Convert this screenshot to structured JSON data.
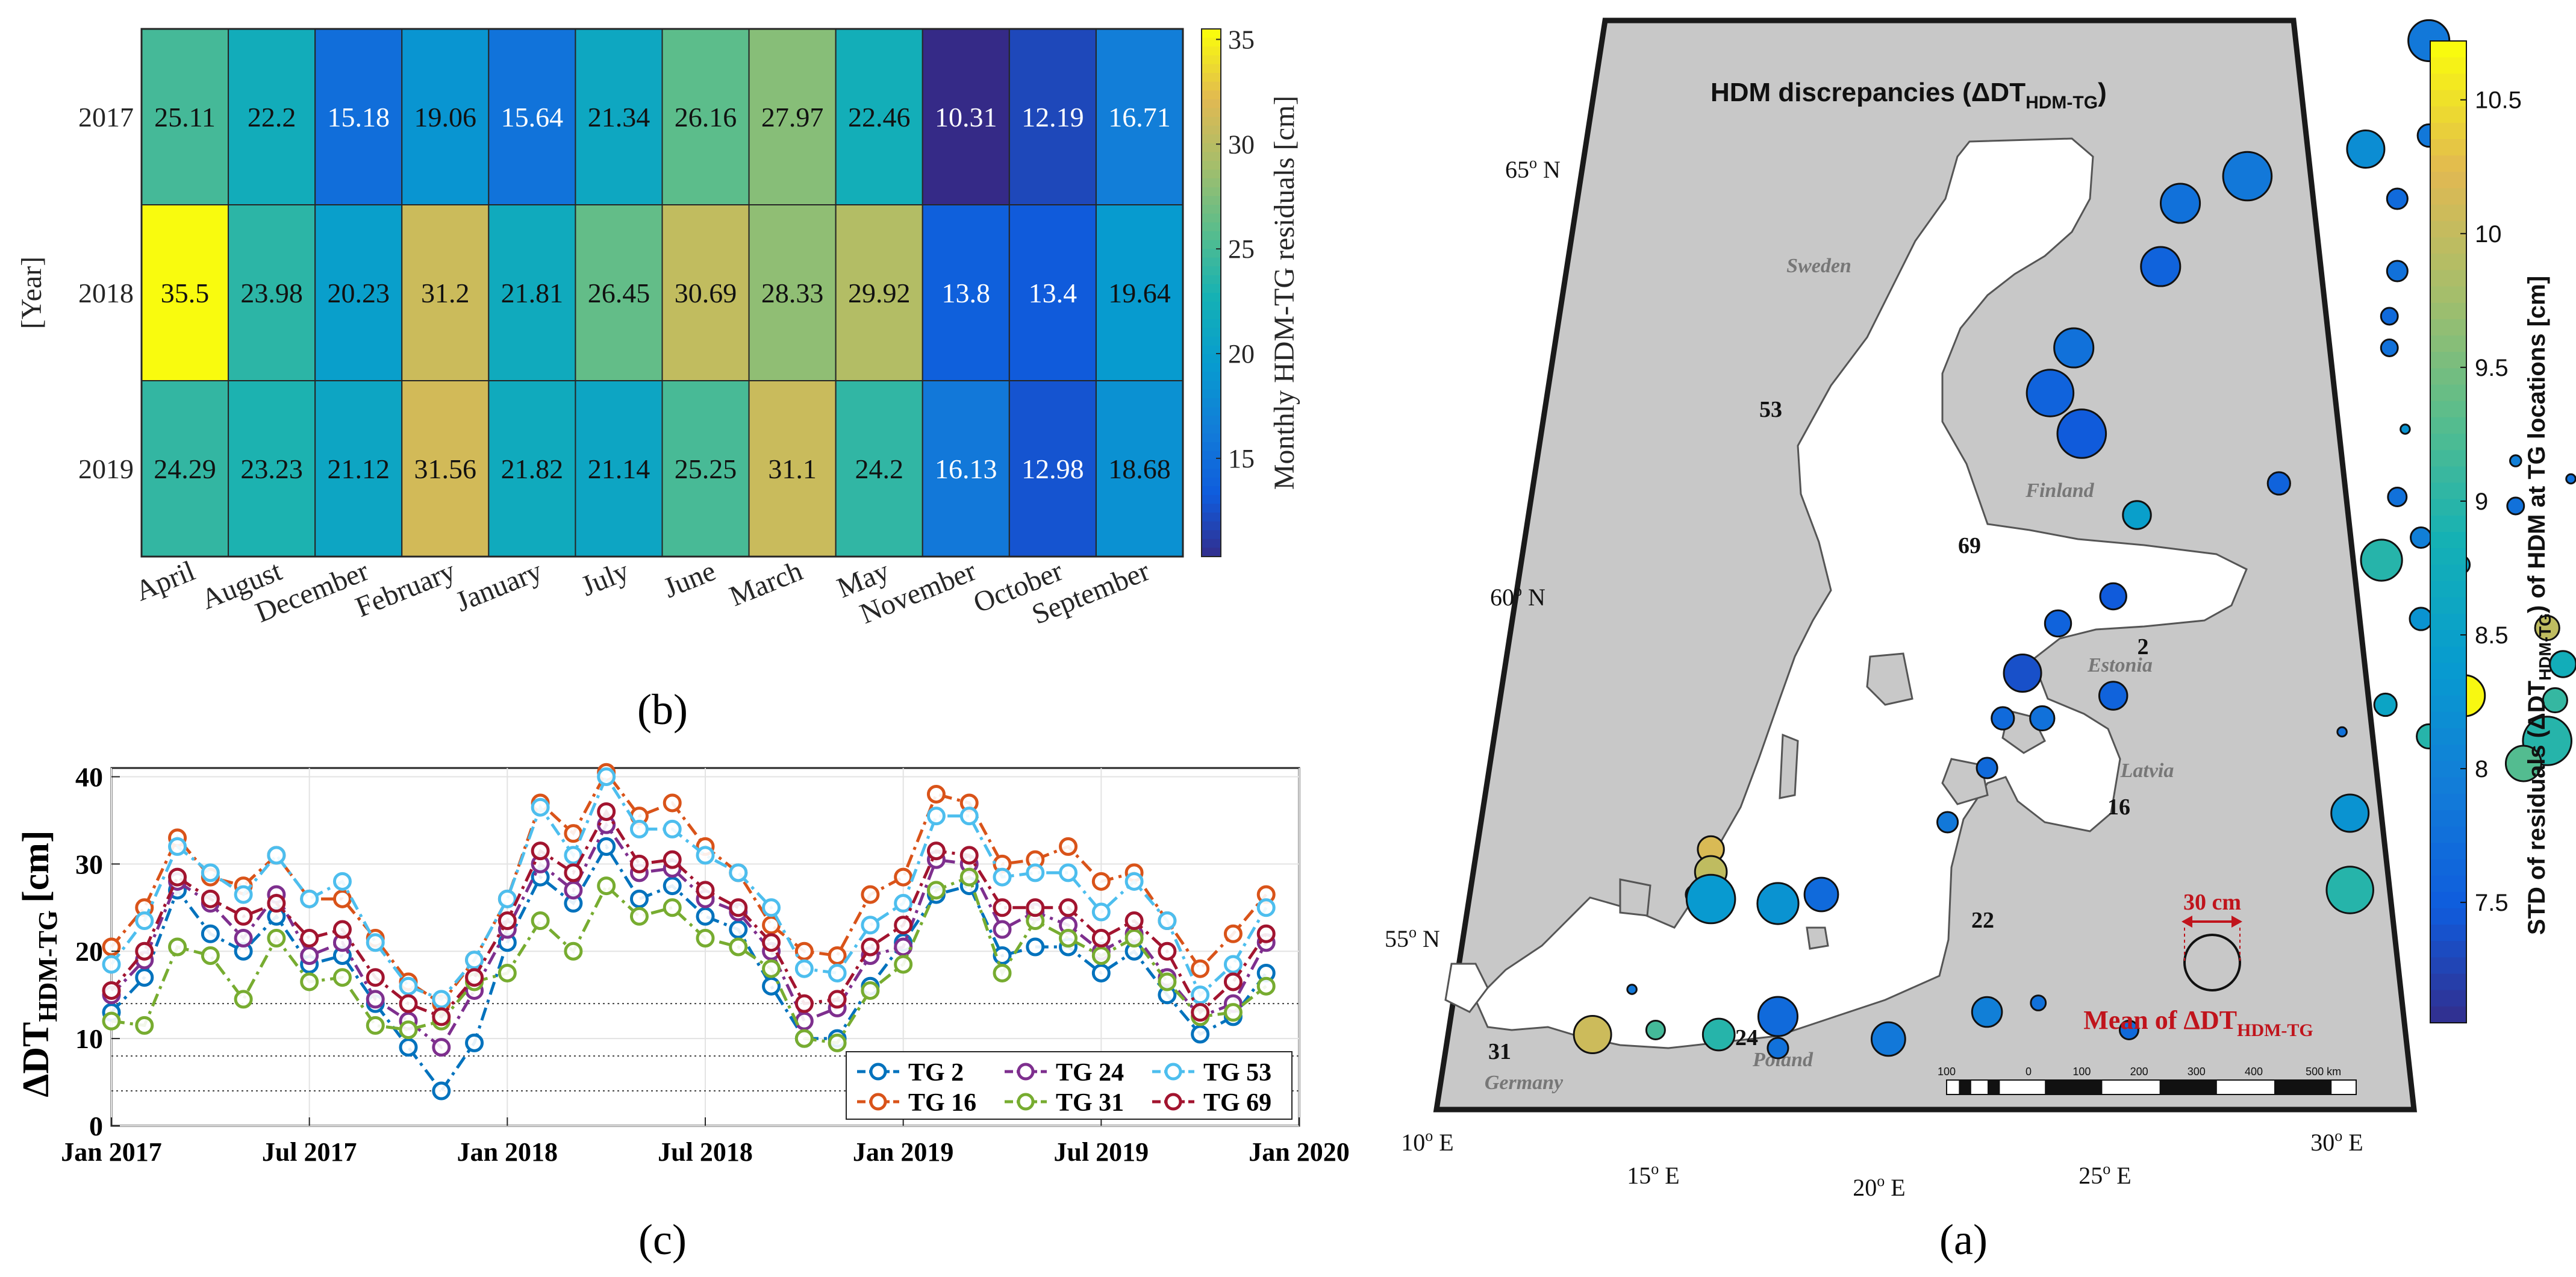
{
  "chart_data": [
    {
      "panel_label": "(b)",
      "type": "heatmap",
      "y_axis_label": "[Year]",
      "rows": [
        "2017",
        "2018",
        "2019"
      ],
      "columns": [
        "April",
        "August",
        "December",
        "February",
        "January",
        "July",
        "June",
        "March",
        "May",
        "November",
        "October",
        "September"
      ],
      "values": [
        [
          "25.11",
          "22.2",
          "15.18",
          "19.06",
          "15.64",
          "21.34",
          "26.16",
          "27.97",
          "22.46",
          "10.31",
          "12.19",
          "16.71"
        ],
        [
          "35.5",
          "23.98",
          "20.23",
          "31.2",
          "21.81",
          "26.45",
          "30.69",
          "28.33",
          "29.92",
          "13.8",
          "13.4",
          "19.64"
        ],
        [
          "24.29",
          "23.23",
          "21.12",
          "31.56",
          "21.82",
          "21.14",
          "25.25",
          "31.1",
          "24.2",
          "16.13",
          "12.98",
          "18.68"
        ]
      ],
      "colorbar": {
        "label": "Monthly HDM-TG residuals [cm]",
        "range": [
          10.31,
          35.5
        ],
        "ticks": [
          "15",
          "20",
          "25",
          "30",
          "35"
        ],
        "colormap": "parula"
      }
    },
    {
      "panel_label": "(c)",
      "type": "line",
      "ylabel_main": "ΔDT",
      "ylabel_sub": "HDM-TG",
      "ylabel_unit": "[cm]",
      "x_ticks": [
        "Jan 2017",
        "Jul 2017",
        "Jan 2018",
        "Jul 2018",
        "Jan 2019",
        "Jul 2019",
        "Jan 2020"
      ],
      "x_range_months": [
        0,
        36
      ],
      "y_range": [
        0,
        41
      ],
      "y_ticks": [
        "0",
        "10",
        "20",
        "30",
        "40"
      ],
      "reference_lines": [
        14,
        8,
        4
      ],
      "legend_position": "bottom-right",
      "x_months": [
        0,
        1,
        2,
        3,
        4,
        5,
        6,
        7,
        8,
        9,
        10,
        11,
        12,
        13,
        14,
        15,
        16,
        17,
        18,
        19,
        20,
        21,
        22,
        23,
        24,
        25,
        26,
        27,
        28,
        29,
        30,
        31,
        32,
        33,
        34,
        35
      ],
      "series": [
        {
          "name": "TG 2",
          "color": "#0072BD",
          "values": [
            13,
            17,
            27,
            22,
            20,
            24,
            18.5,
            19.5,
            14,
            9,
            4,
            9.5,
            21,
            28.5,
            25.5,
            32,
            26,
            27.5,
            24,
            22.5,
            16,
            10,
            10,
            16,
            21,
            26.5,
            27.5,
            19.5,
            20.5,
            20.5,
            17.5,
            20,
            15,
            10.5,
            12.5,
            17.5
          ]
        },
        {
          "name": "TG 16",
          "color": "#D95319",
          "values": [
            20.5,
            25,
            33,
            28.5,
            27.5,
            31,
            26,
            26,
            21.5,
            16.5,
            14,
            19,
            26,
            37,
            33.5,
            40.5,
            35.5,
            37,
            32,
            29,
            23,
            20,
            19.5,
            26.5,
            28.5,
            38,
            37,
            30,
            30.5,
            32,
            28,
            29,
            23.5,
            18,
            22,
            26.5
          ]
        },
        {
          "name": "TG 24",
          "color": "#7E2F8E",
          "values": [
            15,
            19,
            28,
            25.5,
            21.5,
            26.5,
            19.5,
            21,
            14.5,
            12,
            9,
            15.5,
            22.5,
            30,
            27,
            34.5,
            29,
            29.5,
            26,
            24.5,
            20,
            12,
            13.5,
            19.5,
            20.5,
            30.5,
            30,
            22.5,
            24.5,
            23,
            20,
            22,
            17,
            12.5,
            14,
            21
          ]
        },
        {
          "name": "TG 31",
          "color": "#77AC30",
          "values": [
            12,
            11.5,
            20.5,
            19.5,
            14.5,
            21.5,
            16.5,
            17,
            11.5,
            11,
            12,
            16.5,
            17.5,
            23.5,
            20,
            27.5,
            24,
            25,
            21.5,
            20.5,
            18,
            10,
            9.5,
            15.5,
            18.5,
            27,
            28.5,
            17.5,
            23.5,
            21.5,
            19.5,
            21.5,
            16.5,
            12.5,
            13,
            16
          ]
        },
        {
          "name": "TG 53",
          "color": "#4DBEEE",
          "values": [
            18.5,
            23.5,
            32,
            29,
            26.5,
            31,
            26,
            28,
            21,
            16,
            14.5,
            19,
            26,
            36.5,
            31,
            40,
            34,
            34,
            31,
            29,
            25,
            18,
            17.5,
            23,
            25.5,
            35.5,
            35.5,
            28.5,
            29,
            29,
            24.5,
            28,
            23.5,
            15,
            18.5,
            25
          ]
        },
        {
          "name": "TG 69",
          "color": "#A2142F",
          "values": [
            15.5,
            20,
            28.5,
            26,
            24,
            25.5,
            21.5,
            22.5,
            17,
            14,
            12.5,
            17,
            23.5,
            31.5,
            29,
            36,
            30,
            30.5,
            27,
            25,
            21,
            14,
            14.5,
            20.5,
            23,
            31.5,
            31,
            25,
            25,
            25,
            21.5,
            23.5,
            20,
            13,
            16.5,
            22
          ]
        }
      ]
    },
    {
      "panel_label": "(a)",
      "type": "scatter",
      "map_title_main": "HDM discrepancies (ΔDT",
      "map_title_sub": "HDM-TG",
      "map_title_close": ")",
      "lon_ticks": [
        "10",
        "15",
        "20",
        "25",
        "30"
      ],
      "lon_suffix": "E",
      "lat_ticks": [
        "55",
        "60",
        "65"
      ],
      "lat_suffix": "N",
      "place_labels": [
        "Sweden",
        "Finland",
        "Estonia",
        "Latvia",
        "Poland",
        "Germany"
      ],
      "station_labels": [
        "53",
        "69",
        "2",
        "16",
        "22",
        "24",
        "31"
      ],
      "colorbar": {
        "label_main": "STD of residuals (ΔDT",
        "label_sub": "HDM-TG",
        "label_rest": ") of HDM at TG locations [cm]",
        "range": [
          7.05,
          10.72
        ],
        "ticks": [
          "7.5",
          "8",
          "8.5",
          "9",
          "9.5",
          "10",
          "10.5"
        ],
        "colormap": "parula"
      },
      "size_legend": {
        "value_label": "30 cm",
        "caption_main": "Mean of ΔDT",
        "caption_sub": "HDM-TG"
      },
      "scale_bar": {
        "ticks": [
          "100",
          "0",
          "100",
          "200",
          "300",
          "400",
          "500 km"
        ]
      },
      "points": [
        {
          "lon": 23.0,
          "lat": 65.7,
          "std": 8.8,
          "mean": 18
        },
        {
          "lon": 23.5,
          "lat": 65.75,
          "std": 8.7,
          "mean": 16
        },
        {
          "lon": 24.4,
          "lat": 65.75,
          "std": 8.5,
          "mean": 18
        },
        {
          "lon": 24.6,
          "lat": 65.1,
          "std": 8.4,
          "mean": 16
        },
        {
          "lon": 24.1,
          "lat": 64.8,
          "std": 8.3,
          "mean": 15
        },
        {
          "lon": 22.0,
          "lat": 64.95,
          "std": 7.9,
          "mean": 22
        },
        {
          "lon": 22.0,
          "lat": 63.9,
          "std": 7.9,
          "mean": 12
        },
        {
          "lon": 21.2,
          "lat": 63.75,
          "std": 8.2,
          "mean": 20
        },
        {
          "lon": 19.7,
          "lat": 63.45,
          "std": 7.9,
          "mean": 26
        },
        {
          "lon": 18.85,
          "lat": 63.15,
          "std": 7.8,
          "mean": 21
        },
        {
          "lon": 21.6,
          "lat": 63.2,
          "std": 7.7,
          "mean": 11
        },
        {
          "lon": 18.6,
          "lat": 62.45,
          "std": 7.6,
          "mean": 21
        },
        {
          "lon": 21.6,
          "lat": 62.4,
          "std": 7.8,
          "mean": 11
        },
        {
          "lon": 21.5,
          "lat": 61.9,
          "std": 7.7,
          "mean": 9
        },
        {
          "lon": 21.5,
          "lat": 61.55,
          "std": 7.8,
          "mean": 9
        },
        {
          "lon": 17.5,
          "lat": 61.55,
          "std": 7.8,
          "mean": 21
        },
        {
          "lon": 17.2,
          "lat": 61.05,
          "std": 7.6,
          "mean": 25
        },
        {
          "lon": 17.6,
          "lat": 60.6,
          "std": 7.5,
          "mean": 26
        },
        {
          "lon": 21.7,
          "lat": 60.65,
          "std": 8.3,
          "mean": 5
        },
        {
          "lon": 23.1,
          "lat": 60.3,
          "std": 8.0,
          "mean": 6
        },
        {
          "lon": 23.8,
          "lat": 60.1,
          "std": 7.8,
          "mean": 5
        },
        {
          "lon": 25.2,
          "lat": 60.45,
          "std": 8.6,
          "mean": 6
        },
        {
          "lon": 27.8,
          "lat": 60.35,
          "std": 10.4,
          "mean": 12
        },
        {
          "lon": 20.1,
          "lat": 60.05,
          "std": 7.6,
          "mean": 12
        },
        {
          "lon": 21.6,
          "lat": 59.9,
          "std": 7.8,
          "mean": 10
        },
        {
          "lon": 23.1,
          "lat": 59.8,
          "std": 7.8,
          "mean": 9
        },
        {
          "lon": 24.6,
          "lat": 59.7,
          "std": 8.1,
          "mean": 14
        },
        {
          "lon": 25.5,
          "lat": 59.75,
          "std": 8.4,
          "mean": 18
        },
        {
          "lon": 26.3,
          "lat": 59.75,
          "std": 8.2,
          "mean": 20
        },
        {
          "lon": 27.0,
          "lat": 59.8,
          "std": 9.0,
          "mean": 20
        },
        {
          "lon": 18.3,
          "lat": 59.7,
          "std": 8.5,
          "mean": 15
        },
        {
          "lon": 21.9,
          "lat": 59.45,
          "std": 8.0,
          "mean": 11
        },
        {
          "lon": 22.35,
          "lat": 59.35,
          "std": 8.3,
          "mean": 10
        },
        {
          "lon": 22.4,
          "lat": 59.15,
          "std": 8.6,
          "mean": 10
        },
        {
          "lon": 21.4,
          "lat": 59.2,
          "std": 9.0,
          "mean": 22
        },
        {
          "lon": 18.0,
          "lat": 58.8,
          "std": 7.5,
          "mean": 14
        },
        {
          "lon": 17.3,
          "lat": 58.5,
          "std": 7.6,
          "mean": 14
        },
        {
          "lon": 21.9,
          "lat": 58.55,
          "std": 8.3,
          "mean": 12
        },
        {
          "lon": 23.5,
          "lat": 58.45,
          "std": 10.0,
          "mean": 13
        },
        {
          "lon": 23.7,
          "lat": 58.05,
          "std": 8.8,
          "mean": 14
        },
        {
          "lon": 16.85,
          "lat": 57.95,
          "std": 7.4,
          "mean": 20
        },
        {
          "lon": 18.0,
          "lat": 57.7,
          "std": 7.6,
          "mean": 15
        },
        {
          "lon": 22.45,
          "lat": 57.7,
          "std": 10.7,
          "mean": 22
        },
        {
          "lon": 21.45,
          "lat": 57.6,
          "std": 8.6,
          "mean": 12
        },
        {
          "lon": 23.6,
          "lat": 57.65,
          "std": 9.1,
          "mean": 13
        },
        {
          "lon": 16.6,
          "lat": 57.45,
          "std": 7.7,
          "mean": 12
        },
        {
          "lon": 17.1,
          "lat": 57.45,
          "std": 7.8,
          "mean": 13
        },
        {
          "lon": 22.0,
          "lat": 57.25,
          "std": 9.0,
          "mean": 13
        },
        {
          "lon": 23.5,
          "lat": 57.2,
          "std": 9.0,
          "mean": 26
        },
        {
          "lon": 23.2,
          "lat": 56.95,
          "std": 9.3,
          "mean": 19
        },
        {
          "lon": 20.9,
          "lat": 57.3,
          "std": 7.8,
          "mean": 5
        },
        {
          "lon": 16.4,
          "lat": 56.9,
          "std": 7.7,
          "mean": 11
        },
        {
          "lon": 15.9,
          "lat": 56.3,
          "std": 7.9,
          "mean": 11
        },
        {
          "lon": 21.0,
          "lat": 56.4,
          "std": 8.3,
          "mean": 20
        },
        {
          "lon": 21.0,
          "lat": 55.55,
          "std": 9.0,
          "mean": 25
        },
        {
          "lon": 12.9,
          "lat": 56.0,
          "std": 10.2,
          "mean": 14
        },
        {
          "lon": 12.9,
          "lat": 55.75,
          "std": 10.0,
          "mean": 17
        },
        {
          "lon": 12.7,
          "lat": 55.5,
          "std": 9.3,
          "mean": 10
        },
        {
          "lon": 12.9,
          "lat": 55.45,
          "std": 8.4,
          "mean": 26
        },
        {
          "lon": 13.75,
          "lat": 55.4,
          "std": 8.3,
          "mean": 22
        },
        {
          "lon": 14.3,
          "lat": 55.5,
          "std": 7.7,
          "mean": 18
        },
        {
          "lon": 11.9,
          "lat": 54.45,
          "std": 7.9,
          "mean": 5
        },
        {
          "lon": 11.4,
          "lat": 53.95,
          "std": 10.1,
          "mean": 20
        },
        {
          "lon": 12.2,
          "lat": 54.0,
          "std": 9.2,
          "mean": 10
        },
        {
          "lon": 13.0,
          "lat": 53.95,
          "std": 9.0,
          "mean": 17
        },
        {
          "lon": 13.75,
          "lat": 54.15,
          "std": 7.7,
          "mean": 21
        },
        {
          "lon": 13.75,
          "lat": 53.8,
          "std": 7.8,
          "mean": 11
        },
        {
          "lon": 15.15,
          "lat": 53.9,
          "std": 7.9,
          "mean": 18
        },
        {
          "lon": 16.4,
          "lat": 54.2,
          "std": 8.0,
          "mean": 16
        },
        {
          "lon": 17.05,
          "lat": 54.3,
          "std": 7.8,
          "mean": 8
        },
        {
          "lon": 18.2,
          "lat": 54.0,
          "std": 7.7,
          "mean": 10
        }
      ]
    }
  ]
}
